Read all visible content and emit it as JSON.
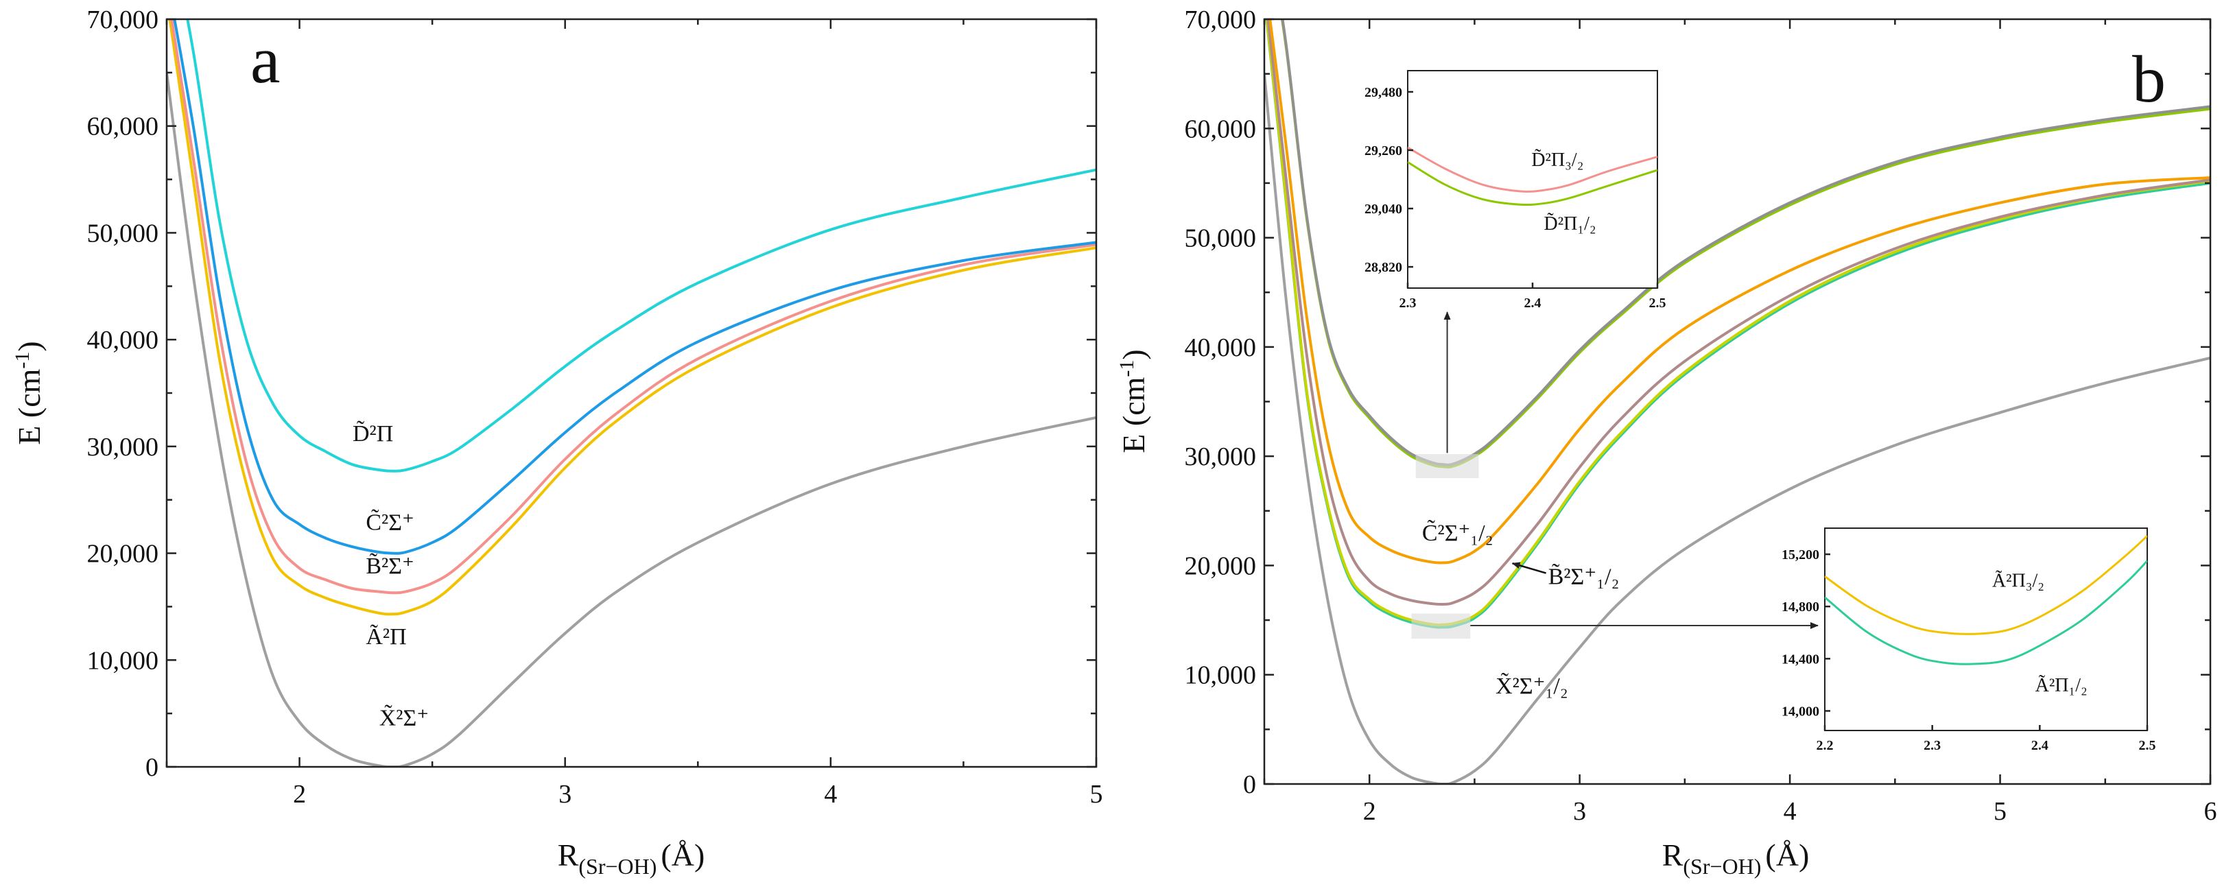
{
  "chart_data": [
    {
      "panel": "a",
      "type": "line",
      "title": "",
      "xlabel": "R",
      "xlabel_sub": "(Sr−OH)",
      "xlabel_unit": "(Å)",
      "ylabel": "E (cm",
      "ylabel_sup": "-1",
      "ylabel_end": ")",
      "xlim": [
        1.5,
        5
      ],
      "ylim": [
        0,
        70000
      ],
      "xticks": [
        2,
        3,
        4,
        5
      ],
      "xtick_labels": [
        "2",
        "3",
        "4",
        "5"
      ],
      "yticks": [
        0,
        10000,
        20000,
        30000,
        40000,
        50000,
        60000,
        70000
      ],
      "ytick_labels": [
        "0",
        "10,000",
        "20,000",
        "30,000",
        "40,000",
        "50,000",
        "60,000",
        "70,000"
      ],
      "series": [
        {
          "name": "X̃²Σ⁺",
          "color": "#a0a0a0",
          "x": [
            1.5,
            1.6,
            1.7,
            1.8,
            1.9,
            2.0,
            2.1,
            2.2,
            2.3,
            2.35,
            2.4,
            2.5,
            2.6,
            2.8,
            3.0,
            3.2,
            3.5,
            4.0,
            4.5,
            5.0
          ],
          "y": [
            65000,
            46000,
            30000,
            17500,
            8500,
            4200,
            2000,
            700,
            100,
            0,
            150,
            1200,
            3000,
            7800,
            12500,
            16500,
            21000,
            26500,
            30000,
            32700
          ]
        },
        {
          "name": "Ã²Π",
          "color": "#f2c200",
          "x": [
            1.5,
            1.6,
            1.7,
            1.8,
            1.9,
            2.0,
            2.1,
            2.2,
            2.3,
            2.35,
            2.4,
            2.5,
            2.6,
            2.8,
            3.0,
            3.2,
            3.5,
            4.0,
            4.5,
            5.0
          ],
          "y": [
            72000,
            55000,
            38000,
            26500,
            19500,
            17000,
            15800,
            15000,
            14400,
            14300,
            14500,
            15500,
            17500,
            22500,
            28000,
            32500,
            37500,
            43000,
            46500,
            48600
          ]
        },
        {
          "name": "B̃²Σ⁺",
          "color": "#f5918c",
          "x": [
            1.5,
            1.6,
            1.7,
            1.8,
            1.9,
            2.0,
            2.1,
            2.2,
            2.3,
            2.35,
            2.4,
            2.5,
            2.6,
            2.8,
            3.0,
            3.2,
            3.5,
            4.0,
            4.5,
            5.0
          ],
          "y": [
            73000,
            57000,
            40500,
            28500,
            21500,
            18600,
            17500,
            16700,
            16400,
            16300,
            16400,
            17200,
            18800,
            23500,
            28800,
            33200,
            38200,
            43600,
            47000,
            48900
          ]
        },
        {
          "name": "C̃²Σ⁺",
          "color": "#1e9be6",
          "x": [
            1.5,
            1.6,
            1.7,
            1.8,
            1.9,
            2.0,
            2.1,
            2.2,
            2.3,
            2.35,
            2.4,
            2.5,
            2.6,
            2.8,
            3.0,
            3.2,
            3.5,
            4.0,
            4.5,
            5.0
          ],
          "y": [
            74000,
            60000,
            44000,
            32000,
            25000,
            22700,
            21400,
            20600,
            20100,
            20000,
            20100,
            21000,
            22500,
            26800,
            31300,
            35200,
            39800,
            44600,
            47400,
            49100
          ]
        },
        {
          "name": "D̃²Π",
          "color": "#22d3d8",
          "x": [
            1.5,
            1.6,
            1.7,
            1.8,
            1.9,
            2.0,
            2.1,
            2.2,
            2.3,
            2.35,
            2.4,
            2.5,
            2.6,
            2.8,
            3.0,
            3.2,
            3.5,
            4.0,
            4.5,
            5.0
          ],
          "y": [
            80000,
            67000,
            51000,
            40000,
            34000,
            31000,
            29500,
            28300,
            27800,
            27700,
            27800,
            28600,
            29800,
            33500,
            37500,
            41000,
            45300,
            50300,
            53300,
            55900
          ]
        }
      ],
      "annotations": [
        {
          "text": "D̃²Π",
          "x": 2.2,
          "y": 30500
        },
        {
          "text": "C̃²Σ⁺",
          "x": 2.25,
          "y": 22200
        },
        {
          "text": "B̃²Σ⁺",
          "x": 2.25,
          "y": 18100
        },
        {
          "text": "Ã²Π",
          "x": 2.25,
          "y": 11500
        },
        {
          "text": "X̃²Σ⁺",
          "x": 2.3,
          "y": 3900
        }
      ],
      "panel_label": "a"
    },
    {
      "panel": "b",
      "type": "line",
      "title": "",
      "xlabel": "R",
      "xlabel_sub": "(Sr−OH)",
      "xlabel_unit": "(Å)",
      "ylabel": "E (cm",
      "ylabel_sup": "-1",
      "ylabel_end": ")",
      "xlim": [
        1.5,
        6
      ],
      "ylim": [
        0,
        70000
      ],
      "xticks": [
        2,
        3,
        4,
        5,
        6
      ],
      "xtick_labels": [
        "2",
        "3",
        "4",
        "5",
        "6"
      ],
      "yticks": [
        0,
        10000,
        20000,
        30000,
        40000,
        50000,
        60000,
        70000
      ],
      "ytick_labels": [
        "0",
        "10,000",
        "20,000",
        "30,000",
        "40,000",
        "50,000",
        "60,000",
        "70,000"
      ],
      "series": [
        {
          "name": "X̃²Σ⁺₁/₂",
          "color": "#a0a0a0",
          "x": [
            1.5,
            1.6,
            1.7,
            1.8,
            1.9,
            2.0,
            2.1,
            2.2,
            2.3,
            2.35,
            2.4,
            2.5,
            2.6,
            2.8,
            3.0,
            3.2,
            3.5,
            4.0,
            4.5,
            5.0,
            5.5,
            6.0
          ],
          "y": [
            65000,
            45000,
            29000,
            17000,
            8500,
            4000,
            1800,
            600,
            100,
            0,
            150,
            1200,
            3000,
            7800,
            12500,
            16800,
            21500,
            27000,
            31000,
            34000,
            36700,
            39000
          ]
        },
        {
          "name": "Ã²Π₁/₂",
          "color": "#2ecc9a",
          "x": [
            1.5,
            1.6,
            1.7,
            1.8,
            1.9,
            2.0,
            2.1,
            2.2,
            2.3,
            2.35,
            2.4,
            2.5,
            2.6,
            2.8,
            3.0,
            3.2,
            3.5,
            4.0,
            4.5,
            5.0,
            5.5,
            6.0
          ],
          "y": [
            72000,
            54000,
            36000,
            25500,
            19000,
            16700,
            15500,
            14800,
            14400,
            14350,
            14450,
            15200,
            17000,
            22000,
            27500,
            32000,
            37500,
            44000,
            48500,
            51500,
            53600,
            55000
          ]
        },
        {
          "name": "Ã²Π₃/₂",
          "color": "#c8d400",
          "x": [
            1.5,
            1.6,
            1.7,
            1.8,
            1.9,
            2.0,
            2.1,
            2.2,
            2.3,
            2.35,
            2.4,
            2.5,
            2.6,
            2.8,
            3.0,
            3.2,
            3.5,
            4.0,
            4.5,
            5.0,
            5.5,
            6.0
          ],
          "y": [
            72200,
            54200,
            36200,
            25700,
            19200,
            16900,
            15700,
            15000,
            14600,
            14580,
            14700,
            15400,
            17200,
            22200,
            27700,
            32200,
            37700,
            44200,
            48700,
            51700,
            53800,
            55200
          ]
        },
        {
          "name": "B̃²Σ⁺₁/₂",
          "color": "#b08a8a",
          "x": [
            1.5,
            1.6,
            1.7,
            1.8,
            1.9,
            2.0,
            2.1,
            2.2,
            2.3,
            2.35,
            2.4,
            2.5,
            2.6,
            2.8,
            3.0,
            3.2,
            3.5,
            4.0,
            4.5,
            5.0,
            5.5,
            6.0
          ],
          "y": [
            73000,
            56000,
            39500,
            28000,
            21500,
            18600,
            17400,
            16800,
            16500,
            16450,
            16600,
            17500,
            19200,
            23800,
            29000,
            33500,
            38700,
            44700,
            49000,
            51900,
            53900,
            55300
          ]
        },
        {
          "name": "C̃²Σ⁺₁/₂",
          "color": "#f5a000",
          "x": [
            1.5,
            1.6,
            1.7,
            1.8,
            1.9,
            2.0,
            2.1,
            2.2,
            2.3,
            2.35,
            2.4,
            2.5,
            2.6,
            2.8,
            3.0,
            3.2,
            3.5,
            4.0,
            4.5,
            5.0,
            5.5,
            6.0
          ],
          "y": [
            74000,
            59000,
            43000,
            31500,
            25000,
            22600,
            21400,
            20700,
            20300,
            20250,
            20400,
            21300,
            23000,
            27500,
            32500,
            36700,
            41700,
            47000,
            50700,
            53200,
            54900,
            55500
          ]
        },
        {
          "name": "D̃²Π₁/₂",
          "color": "#8cc800",
          "x": [
            1.5,
            1.6,
            1.7,
            1.8,
            1.9,
            2.0,
            2.1,
            2.2,
            2.3,
            2.35,
            2.4,
            2.5,
            2.6,
            2.8,
            3.0,
            3.2,
            3.5,
            4.0,
            4.5,
            5.0,
            5.5,
            6.0
          ],
          "y": [
            80000,
            68000,
            52000,
            41000,
            36000,
            33500,
            31500,
            30000,
            29200,
            29050,
            29100,
            30000,
            31500,
            35300,
            39500,
            43000,
            47700,
            53000,
            56700,
            59000,
            60600,
            61800
          ]
        },
        {
          "name": "D̃²Π₃/₂",
          "color": "#909090",
          "x": [
            1.5,
            1.6,
            1.7,
            1.8,
            1.9,
            2.0,
            2.1,
            2.2,
            2.3,
            2.35,
            2.4,
            2.5,
            2.6,
            2.8,
            3.0,
            3.2,
            3.5,
            4.0,
            4.5,
            5.0,
            5.5,
            6.0
          ],
          "y": [
            80200,
            68200,
            52200,
            41200,
            36200,
            33700,
            31700,
            30200,
            29400,
            29250,
            29300,
            30200,
            31700,
            35500,
            39700,
            43200,
            47900,
            53200,
            56900,
            59200,
            60800,
            62000
          ]
        }
      ],
      "annotations": [
        {
          "text": "C̃²Σ⁺₁/₂",
          "x": 2.25,
          "y": 22300
        },
        {
          "text": "B̃²Σ⁺₁/₂",
          "x": 2.85,
          "y": 18300
        },
        {
          "text": "X̃²Σ⁺₁/₂",
          "x": 2.6,
          "y": 8300
        }
      ],
      "panel_label": "b",
      "insets": [
        {
          "name": "D-state inset",
          "xlim": [
            2.3,
            2.5
          ],
          "ylim": [
            28740,
            29560
          ],
          "xticks": [
            2.3,
            2.4,
            2.5
          ],
          "xtick_labels": [
            "2.3",
            "2.4",
            "2.5"
          ],
          "yticks": [
            28820,
            29040,
            29260,
            29480
          ],
          "ytick_labels": [
            "28,820",
            "29,040",
            "29,260",
            "29,480"
          ],
          "series": [
            {
              "name": "D̃²Π₃/₂",
              "color": "#f5918c",
              "x": [
                2.3,
                2.33,
                2.36,
                2.39,
                2.41,
                2.43,
                2.46,
                2.5
              ],
              "y": [
                29270,
                29190,
                29130,
                29105,
                29110,
                29130,
                29180,
                29235
              ]
            },
            {
              "name": "D̃²Π₁/₂",
              "color": "#8cc800",
              "x": [
                2.3,
                2.33,
                2.36,
                2.39,
                2.41,
                2.43,
                2.46,
                2.5
              ],
              "y": [
                29215,
                29130,
                29075,
                29055,
                29060,
                29080,
                29125,
                29185
              ]
            }
          ],
          "labels": [
            {
              "text": "D̃²Π₃/₂",
              "x": 2.42,
              "y": 29200
            },
            {
              "text": "D̃²Π₁/₂",
              "x": 2.43,
              "y": 28960
            }
          ]
        },
        {
          "name": "A-state inset",
          "xlim": [
            2.2,
            2.5
          ],
          "ylim": [
            13850,
            15400
          ],
          "xticks": [
            2.2,
            2.3,
            2.4,
            2.5
          ],
          "xtick_labels": [
            "2.2",
            "2.3",
            "2.4",
            "2.5"
          ],
          "yticks": [
            14000,
            14400,
            14800,
            15200
          ],
          "ytick_labels": [
            "14,000",
            "14,400",
            "14,800",
            "15,200"
          ],
          "series": [
            {
              "name": "Ã²Π₃/₂",
              "color": "#f2c200",
              "x": [
                2.2,
                2.24,
                2.28,
                2.31,
                2.34,
                2.37,
                2.4,
                2.44,
                2.48,
                2.5
              ],
              "y": [
                15030,
                14800,
                14650,
                14600,
                14590,
                14620,
                14720,
                14920,
                15190,
                15340
              ]
            },
            {
              "name": "Ã²Π₁/₂",
              "color": "#2ecc9a",
              "x": [
                2.2,
                2.24,
                2.28,
                2.31,
                2.34,
                2.37,
                2.4,
                2.44,
                2.48,
                2.5
              ],
              "y": [
                14870,
                14600,
                14430,
                14370,
                14360,
                14390,
                14500,
                14700,
                14980,
                15150
              ]
            }
          ],
          "labels": [
            {
              "text": "Ã²Π₃/₂",
              "x": 2.38,
              "y": 14950
            },
            {
              "text": "Ã²Π₁/₂",
              "x": 2.42,
              "y": 14150
            }
          ]
        }
      ]
    }
  ]
}
